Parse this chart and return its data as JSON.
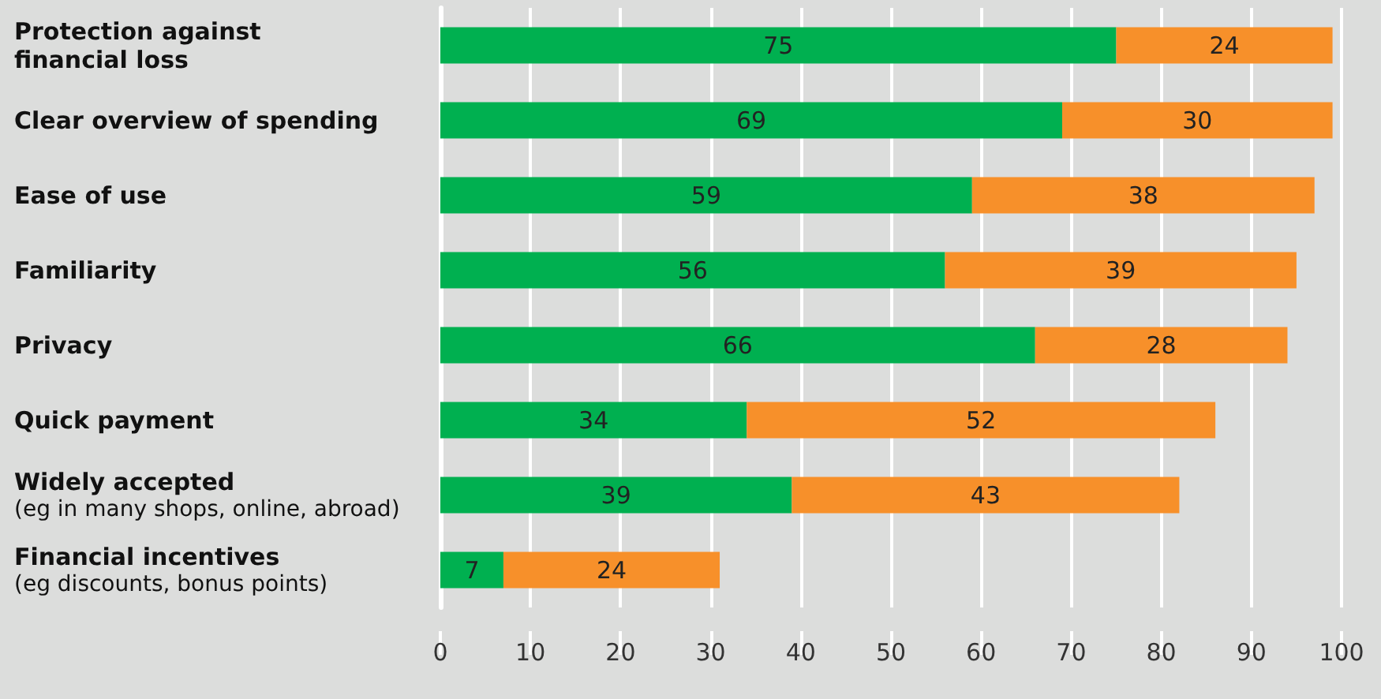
{
  "chart_data": {
    "type": "bar",
    "orientation": "horizontal",
    "stacked": true,
    "categories": [
      "Protection against\nfinancial loss",
      "Clear overview of spending",
      "Ease of use",
      "Familiarity",
      "Privacy",
      "Quick payment",
      "Widely accepted\n(eg in many shops, online, abroad)",
      "Financial incentives\n(eg discounts, bonus points)"
    ],
    "series": [
      {
        "color": "#00b050",
        "values": [
          75,
          69,
          59,
          56,
          66,
          34,
          39,
          7
        ]
      },
      {
        "color": "#f7902a",
        "values": [
          24,
          30,
          38,
          39,
          28,
          52,
          43,
          24
        ]
      }
    ],
    "xlim": [
      0,
      100
    ],
    "xticks": [
      0,
      10,
      20,
      30,
      40,
      50,
      60,
      70,
      80,
      90,
      100
    ],
    "grid": "x",
    "data_labels": true
  }
}
